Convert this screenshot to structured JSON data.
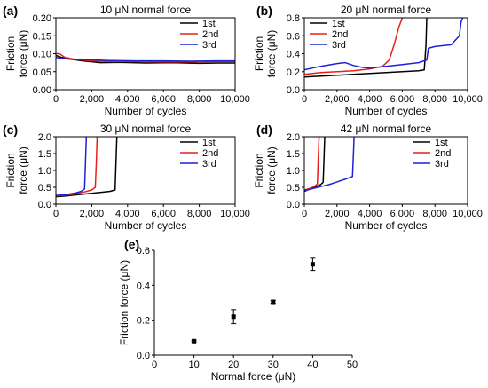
{
  "colors": {
    "s1": "#000000",
    "s2": "#e8201c",
    "s3": "#1f22d6"
  },
  "chart_data": [
    {
      "panel_label": "(a)",
      "type": "line",
      "title": "10 μN normal force",
      "xlabel": "Number of cycles",
      "ylabel_line1": "Friction",
      "ylabel_line2": "force (μN)",
      "xlim": [
        0,
        10000
      ],
      "ylim": [
        0,
        0.2
      ],
      "xticks": [
        0,
        2000,
        4000,
        6000,
        8000,
        10000
      ],
      "xtick_labels": [
        "0",
        "2,000",
        "4,000",
        "6,000",
        "8,000",
        "10,000"
      ],
      "yticks": [
        0,
        0.05,
        0.1,
        0.15,
        0.2
      ],
      "ytick_labels": [
        "0.00",
        "0.05",
        "0.10",
        "0.15",
        "0.20"
      ],
      "legend_position": "top-right",
      "series": [
        {
          "name": "1st",
          "color_key": "s1",
          "x": [
            0,
            300,
            800,
            1500,
            2500,
            3500,
            5000,
            6500,
            8000,
            9000,
            10000
          ],
          "y": [
            0.095,
            0.09,
            0.085,
            0.08,
            0.075,
            0.076,
            0.074,
            0.075,
            0.073,
            0.074,
            0.074
          ]
        },
        {
          "name": "2nd",
          "color_key": "s2",
          "x": [
            0,
            200,
            500,
            1000,
            2000,
            3000,
            4500,
            6000,
            7500,
            9000,
            10000
          ],
          "y": [
            0.1,
            0.1,
            0.09,
            0.085,
            0.08,
            0.078,
            0.078,
            0.077,
            0.077,
            0.078,
            0.078
          ]
        },
        {
          "name": "3rd",
          "color_key": "s3",
          "x": [
            0,
            200,
            500,
            1000,
            2000,
            3000,
            4500,
            6000,
            7500,
            9000,
            10000
          ],
          "y": [
            0.09,
            0.088,
            0.086,
            0.084,
            0.083,
            0.081,
            0.08,
            0.08,
            0.079,
            0.08,
            0.08
          ]
        }
      ]
    },
    {
      "panel_label": "(b)",
      "type": "line",
      "title": "20 μN normal force",
      "xlabel": "Number of cycles",
      "ylabel_line1": "Friction",
      "ylabel_line2": "force (μN)",
      "xlim": [
        0,
        10000
      ],
      "ylim": [
        0,
        0.8
      ],
      "xticks": [
        0,
        2000,
        4000,
        6000,
        8000,
        10000
      ],
      "xtick_labels": [
        "0",
        "2,000",
        "4,000",
        "6,000",
        "8,000",
        "10,000"
      ],
      "yticks": [
        0,
        0.2,
        0.4,
        0.6,
        0.8
      ],
      "ytick_labels": [
        "0.0",
        "0.2",
        "0.4",
        "0.6",
        "0.8"
      ],
      "legend_position": "top-left",
      "series": [
        {
          "name": "1st",
          "color_key": "s1",
          "x": [
            0,
            1000,
            2000,
            3000,
            4000,
            5000,
            6000,
            7000,
            7350,
            7450,
            7500
          ],
          "y": [
            0.14,
            0.15,
            0.16,
            0.17,
            0.18,
            0.19,
            0.2,
            0.21,
            0.22,
            0.5,
            0.8
          ]
        },
        {
          "name": "2nd",
          "color_key": "s2",
          "x": [
            0,
            1000,
            2000,
            3000,
            4000,
            4800,
            5200,
            5500,
            5800,
            6000
          ],
          "y": [
            0.17,
            0.19,
            0.2,
            0.21,
            0.23,
            0.26,
            0.33,
            0.5,
            0.7,
            0.8
          ]
        },
        {
          "name": "3rd",
          "color_key": "s3",
          "x": [
            0,
            1000,
            2000,
            2500,
            3000,
            3500,
            4000,
            5000,
            6000,
            7000,
            7500,
            7600,
            8000,
            9000,
            9500,
            9600,
            9700
          ],
          "y": [
            0.22,
            0.26,
            0.29,
            0.3,
            0.27,
            0.25,
            0.24,
            0.26,
            0.28,
            0.3,
            0.33,
            0.46,
            0.48,
            0.5,
            0.6,
            0.75,
            0.8
          ]
        }
      ]
    },
    {
      "panel_label": "(c)",
      "type": "line",
      "title": "30 μN normal force",
      "xlabel": "Number of cycles",
      "ylabel_line1": "Friction",
      "ylabel_line2": "force (μN)",
      "xlim": [
        0,
        10000
      ],
      "ylim": [
        0,
        2.0
      ],
      "xticks": [
        0,
        2000,
        4000,
        6000,
        8000,
        10000
      ],
      "xtick_labels": [
        "0",
        "2,000",
        "4,000",
        "6,000",
        "8,000",
        "10,000"
      ],
      "yticks": [
        0,
        0.5,
        1.0,
        1.5,
        2.0
      ],
      "ytick_labels": [
        "0.0",
        "0.5",
        "1.0",
        "1.5",
        "2.0"
      ],
      "legend_position": "top-right",
      "series": [
        {
          "name": "1st",
          "color_key": "s1",
          "x": [
            0,
            500,
            1000,
            2000,
            3000,
            3300,
            3350,
            3400
          ],
          "y": [
            0.22,
            0.24,
            0.27,
            0.32,
            0.38,
            0.42,
            1.2,
            2.0
          ]
        },
        {
          "name": "2nd",
          "color_key": "s2",
          "x": [
            0,
            500,
            1000,
            1500,
            2000,
            2200,
            2250,
            2300
          ],
          "y": [
            0.24,
            0.27,
            0.3,
            0.35,
            0.42,
            0.5,
            1.2,
            2.0
          ]
        },
        {
          "name": "3rd",
          "color_key": "s3",
          "x": [
            0,
            500,
            1000,
            1400,
            1600,
            1650,
            1700
          ],
          "y": [
            0.26,
            0.28,
            0.32,
            0.38,
            0.45,
            1.2,
            2.0
          ]
        }
      ]
    },
    {
      "panel_label": "(d)",
      "type": "line",
      "title": "42 μN normal force",
      "xlabel": "Number of cycles",
      "ylabel_line1": "Friction",
      "ylabel_line2": "force (μN)",
      "xlim": [
        0,
        10000
      ],
      "ylim": [
        0,
        2.0
      ],
      "xticks": [
        0,
        2000,
        4000,
        6000,
        8000,
        10000
      ],
      "xtick_labels": [
        "0",
        "2,000",
        "4,000",
        "6,000",
        "8,000",
        "10,000"
      ],
      "yticks": [
        0,
        0.5,
        1.0,
        1.5,
        2.0
      ],
      "ytick_labels": [
        "0.0",
        "0.5",
        "1.0",
        "1.5",
        "2.0"
      ],
      "legend_position": "top-right",
      "series": [
        {
          "name": "1st",
          "color_key": "s1",
          "x": [
            0,
            300,
            600,
            1000,
            1150,
            1200,
            1250
          ],
          "y": [
            0.38,
            0.44,
            0.5,
            0.58,
            0.65,
            1.3,
            2.0
          ]
        },
        {
          "name": "2nd",
          "color_key": "s2",
          "x": [
            0,
            300,
            600,
            800,
            850,
            900
          ],
          "y": [
            0.42,
            0.46,
            0.52,
            0.6,
            1.3,
            2.0
          ]
        },
        {
          "name": "3rd",
          "color_key": "s3",
          "x": [
            0,
            500,
            1000,
            1500,
            2000,
            2500,
            2950,
            3000,
            3050
          ],
          "y": [
            0.4,
            0.46,
            0.52,
            0.58,
            0.66,
            0.74,
            0.82,
            1.4,
            2.0
          ]
        }
      ]
    },
    {
      "panel_label": "(e)",
      "type": "scatter",
      "title": "",
      "xlabel": "Normal force (μN)",
      "ylabel": "Friction force (μN)",
      "xlim": [
        0,
        50
      ],
      "ylim": [
        0,
        0.6
      ],
      "xticks": [
        0,
        10,
        20,
        30,
        40,
        50
      ],
      "xtick_labels": [
        "0",
        "10",
        "20",
        "30",
        "40",
        "50"
      ],
      "yticks": [
        0,
        0.2,
        0.4,
        0.6
      ],
      "ytick_labels": [
        "0.0",
        "0.2",
        "0.4",
        "0.6"
      ],
      "points": [
        {
          "x": 10,
          "y": 0.08,
          "err": 0.005
        },
        {
          "x": 20,
          "y": 0.22,
          "err": 0.04
        },
        {
          "x": 30,
          "y": 0.305,
          "err": 0.008
        },
        {
          "x": 40,
          "y": 0.52,
          "err": 0.035
        }
      ]
    }
  ]
}
